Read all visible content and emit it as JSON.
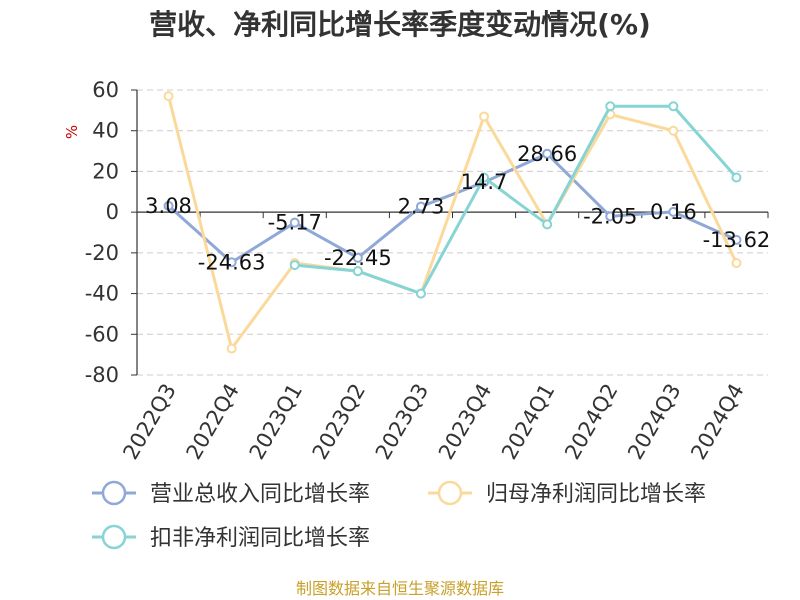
{
  "chart_data": {
    "type": "line",
    "title": "营收、净利同比增长率季度变动情况(%)",
    "ylabel": "%",
    "ylim": [
      -80,
      60
    ],
    "yticks": [
      60,
      40,
      20,
      0,
      -20,
      -40,
      -60,
      -80
    ],
    "grid": true,
    "legend_position": "bottom",
    "categories": [
      "2022Q3",
      "2022Q4",
      "2023Q1",
      "2023Q2",
      "2023Q3",
      "2023Q4",
      "2024Q1",
      "2024Q2",
      "2024Q3",
      "2024Q4"
    ],
    "series": [
      {
        "name": "营业总收入同比增长率",
        "color": "#8fa8d8",
        "values": [
          3.08,
          -24.63,
          -5.17,
          -22.45,
          2.73,
          14.7,
          28.66,
          -2.05,
          0.16,
          -13.62
        ],
        "labels": [
          "3.08",
          "-24.63",
          "-5.17",
          "-22.45",
          "2.73",
          "14.7",
          "28.66",
          "-2.05",
          "0.16",
          "-13.62"
        ]
      },
      {
        "name": "归母净利润同比增长率",
        "color": "#fbd99b",
        "values": [
          57,
          -67,
          -25,
          -29,
          -40,
          47,
          -6,
          48,
          40,
          -25
        ]
      },
      {
        "name": "扣非净利润同比增长率",
        "color": "#86d4d4",
        "values": [
          null,
          null,
          -26,
          -29,
          -40,
          17,
          -6,
          52,
          52,
          17
        ]
      }
    ]
  },
  "source": "制图数据来自恒生聚源数据库"
}
